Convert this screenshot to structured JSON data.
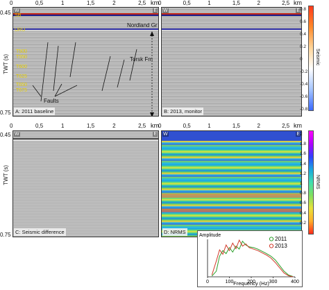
{
  "x_ticks": [
    "0",
    "0,5",
    "1",
    "1,5",
    "2",
    "2,5"
  ],
  "x_unit": "km",
  "y_ticks": {
    "top": "0.45",
    "bottom": "0.75"
  },
  "y_label": "TWT (s)",
  "corners": {
    "left": "W",
    "right": "E"
  },
  "panels": {
    "A": {
      "label": "A: 2011 baseline"
    },
    "B": {
      "label": "B: 2013, monitor"
    },
    "C": {
      "label": "C: Seismic difference"
    },
    "D": {
      "label": "D: NRMS"
    }
  },
  "annotations": {
    "horizons": [
      "SB",
      "URU",
      "T500",
      "T550",
      "T600",
      "T625",
      "T650",
      "T675"
    ],
    "faults": "Faults",
    "nordland": "Nordland Gr",
    "torsk": "Torsk Fm"
  },
  "seismic_colorbar": {
    "label": "Seismic",
    "ticks": [
      "0.8",
      "0.6",
      "0.4",
      "0.2",
      "0",
      "-0.2",
      "-0.4",
      "-0.6",
      "-0.8"
    ],
    "colors": [
      "#ff3a1a",
      "#ff8a2a",
      "#ffd69a",
      "#ffffff",
      "#a6c6ff",
      "#3a6aff"
    ]
  },
  "nrms_colorbar": {
    "label": "NRMS",
    "ticks": [
      "2",
      "1.8",
      "1.6",
      "1.4",
      "1.2",
      "1",
      "0.8",
      "0.6",
      "0.4",
      "0.2",
      "0"
    ],
    "colors": [
      "#ff00ff",
      "#b000ff",
      "#3040ff",
      "#1aa8e0",
      "#40e0b0",
      "#80e060",
      "#e8e23a",
      "#ffb02a",
      "#ff2a1a"
    ]
  },
  "chart_data": {
    "type": "line",
    "title": "",
    "ylabel": "Amplitude",
    "xlabel": "Frequency (Hz)",
    "x_ticks": [
      "0",
      "100",
      "200",
      "300",
      "400"
    ],
    "xlim": [
      0,
      400
    ],
    "series": [
      {
        "name": "2011",
        "color": "#2aa02a",
        "x": [
          20,
          40,
          55,
          70,
          85,
          100,
          115,
          130,
          145,
          160,
          175,
          190,
          210,
          230,
          250,
          270,
          290,
          310,
          330,
          350,
          370,
          390
        ],
        "y": [
          0.02,
          0.15,
          0.55,
          0.7,
          0.62,
          0.78,
          0.66,
          0.82,
          0.74,
          0.95,
          0.85,
          0.8,
          0.78,
          0.74,
          0.68,
          0.62,
          0.55,
          0.45,
          0.3,
          0.15,
          0.05,
          0.01
        ]
      },
      {
        "name": "2013",
        "color": "#d23a2a",
        "x": [
          20,
          40,
          55,
          70,
          85,
          100,
          115,
          130,
          145,
          160,
          175,
          190,
          210,
          230,
          250,
          270,
          290,
          310,
          330,
          350,
          370,
          390
        ],
        "y": [
          0.05,
          0.42,
          0.72,
          0.6,
          0.85,
          0.7,
          0.9,
          0.75,
          0.98,
          0.82,
          0.88,
          0.78,
          0.74,
          0.7,
          0.64,
          0.58,
          0.5,
          0.38,
          0.24,
          0.1,
          0.03,
          0.0
        ]
      }
    ]
  }
}
